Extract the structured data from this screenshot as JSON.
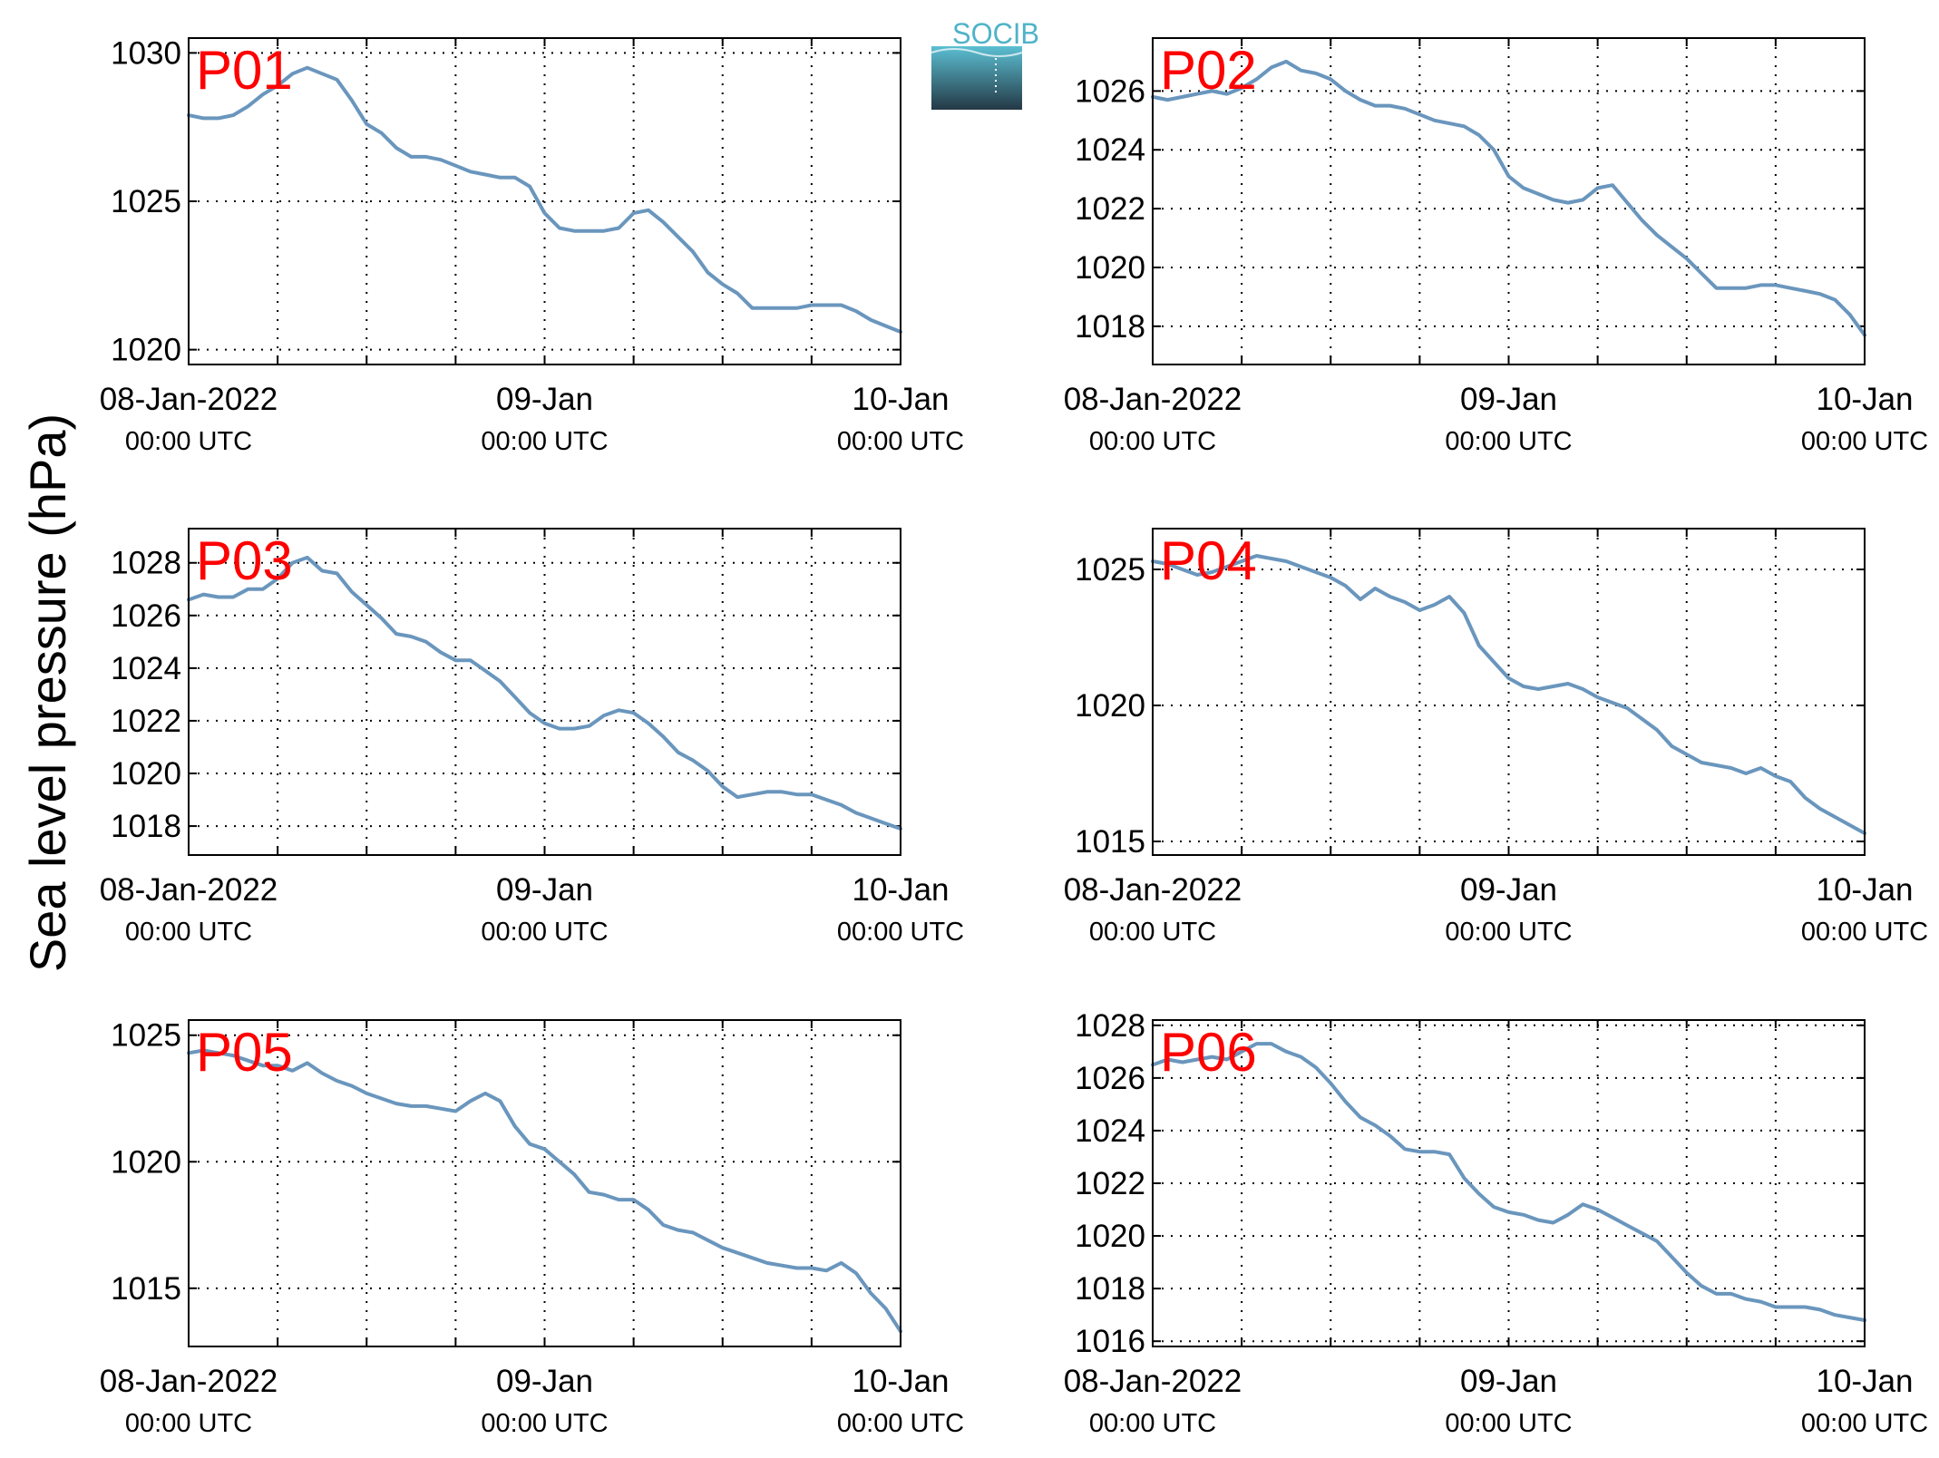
{
  "figure": {
    "ylabel": "Sea level pressure (hPa)",
    "logo_text": "SOCIB",
    "colors": {
      "line": "#6a96bd",
      "label": "#ff0000",
      "logo_top": "#5bbfd2",
      "logo_bottom": "#243845"
    }
  },
  "chart_data": [
    {
      "type": "line",
      "title": "P01",
      "grid": true,
      "x_tick_dates": [
        "08-Jan-2022",
        "09-Jan",
        "10-Jan"
      ],
      "x_tick_times": [
        "00:00 UTC",
        "00:00 UTC",
        "00:00 UTC"
      ],
      "xlim": [
        0,
        48
      ],
      "ylim": [
        1019.5,
        1030.5
      ],
      "yticks": [
        1020,
        1025,
        1030
      ],
      "series": [
        {
          "x": [
            0,
            1,
            2,
            3,
            4,
            5,
            6,
            7,
            8,
            9,
            10,
            11,
            12,
            13,
            14,
            15,
            16,
            17,
            18,
            19,
            20,
            21,
            22,
            23,
            24,
            25,
            26,
            27,
            28,
            29,
            30,
            31,
            32,
            33,
            34,
            35,
            36,
            37,
            38,
            39,
            40,
            41,
            42,
            43,
            44,
            45,
            46,
            47,
            48
          ],
          "y": [
            1027.9,
            1027.8,
            1027.8,
            1027.9,
            1028.2,
            1028.6,
            1028.9,
            1029.3,
            1029.5,
            1029.3,
            1029.1,
            1028.4,
            1027.6,
            1027.3,
            1026.8,
            1026.5,
            1026.5,
            1026.4,
            1026.2,
            1026.0,
            1025.9,
            1025.8,
            1025.8,
            1025.5,
            1024.6,
            1024.1,
            1024.0,
            1024.0,
            1024.0,
            1024.1,
            1024.6,
            1024.7,
            1024.3,
            1023.8,
            1023.3,
            1022.6,
            1022.2,
            1021.9,
            1021.4,
            1021.4,
            1021.4,
            1021.4,
            1021.5,
            1021.5,
            1021.5,
            1021.3,
            1021.0,
            1020.8,
            1020.6
          ]
        }
      ]
    },
    {
      "type": "line",
      "title": "P02",
      "grid": true,
      "x_tick_dates": [
        "08-Jan-2022",
        "09-Jan",
        "10-Jan"
      ],
      "x_tick_times": [
        "00:00 UTC",
        "00:00 UTC",
        "00:00 UTC"
      ],
      "xlim": [
        0,
        48
      ],
      "ylim": [
        1016.7,
        1027.8
      ],
      "yticks": [
        1018,
        1020,
        1022,
        1024,
        1026
      ],
      "series": [
        {
          "x": [
            0,
            1,
            2,
            3,
            4,
            5,
            6,
            7,
            8,
            9,
            10,
            11,
            12,
            13,
            14,
            15,
            16,
            17,
            18,
            19,
            20,
            21,
            22,
            23,
            24,
            25,
            26,
            27,
            28,
            29,
            30,
            31,
            32,
            33,
            34,
            35,
            36,
            37,
            38,
            39,
            40,
            41,
            42,
            43,
            44,
            45,
            46,
            47,
            48
          ],
          "y": [
            1025.8,
            1025.7,
            1025.8,
            1025.9,
            1026.0,
            1025.9,
            1026.1,
            1026.4,
            1026.8,
            1027.0,
            1026.7,
            1026.6,
            1026.4,
            1026.0,
            1025.7,
            1025.5,
            1025.5,
            1025.4,
            1025.2,
            1025.0,
            1024.9,
            1024.8,
            1024.5,
            1024.0,
            1023.1,
            1022.7,
            1022.5,
            1022.3,
            1022.2,
            1022.3,
            1022.7,
            1022.8,
            1022.2,
            1021.6,
            1021.1,
            1020.7,
            1020.3,
            1019.8,
            1019.3,
            1019.3,
            1019.3,
            1019.4,
            1019.4,
            1019.3,
            1019.2,
            1019.1,
            1018.9,
            1018.4,
            1017.7
          ]
        }
      ]
    },
    {
      "type": "line",
      "title": "P03",
      "grid": true,
      "x_tick_dates": [
        "08-Jan-2022",
        "09-Jan",
        "10-Jan"
      ],
      "x_tick_times": [
        "00:00 UTC",
        "00:00 UTC",
        "00:00 UTC"
      ],
      "xlim": [
        0,
        48
      ],
      "ylim": [
        1016.9,
        1029.3
      ],
      "yticks": [
        1018,
        1020,
        1022,
        1024,
        1026,
        1028
      ],
      "series": [
        {
          "x": [
            0,
            1,
            2,
            3,
            4,
            5,
            6,
            7,
            8,
            9,
            10,
            11,
            12,
            13,
            14,
            15,
            16,
            17,
            18,
            19,
            20,
            21,
            22,
            23,
            24,
            25,
            26,
            27,
            28,
            29,
            30,
            31,
            32,
            33,
            34,
            35,
            36,
            37,
            38,
            39,
            40,
            41,
            42,
            43,
            44,
            45,
            46,
            47,
            48
          ],
          "y": [
            1026.6,
            1026.8,
            1026.7,
            1026.7,
            1027.0,
            1027.0,
            1027.4,
            1028.0,
            1028.2,
            1027.7,
            1027.6,
            1026.9,
            1026.4,
            1025.9,
            1025.3,
            1025.2,
            1025.0,
            1024.6,
            1024.3,
            1024.3,
            1023.9,
            1023.5,
            1022.9,
            1022.3,
            1021.9,
            1021.7,
            1021.7,
            1021.8,
            1022.2,
            1022.4,
            1022.3,
            1021.9,
            1021.4,
            1020.8,
            1020.5,
            1020.1,
            1019.5,
            1019.1,
            1019.2,
            1019.3,
            1019.3,
            1019.2,
            1019.2,
            1019.0,
            1018.8,
            1018.5,
            1018.3,
            1018.1,
            1017.9
          ]
        }
      ]
    },
    {
      "type": "line",
      "title": "P04",
      "grid": true,
      "x_tick_dates": [
        "08-Jan-2022",
        "09-Jan",
        "10-Jan"
      ],
      "x_tick_times": [
        "00:00 UTC",
        "00:00 UTC",
        "00:00 UTC"
      ],
      "xlim": [
        0,
        48
      ],
      "ylim": [
        1014.5,
        1026.5
      ],
      "yticks": [
        1015,
        1020,
        1025
      ],
      "series": [
        {
          "x": [
            0,
            1,
            2,
            3,
            4,
            5,
            6,
            7,
            8,
            9,
            10,
            11,
            12,
            13,
            14,
            15,
            16,
            17,
            18,
            19,
            20,
            21,
            22,
            23,
            24,
            25,
            26,
            27,
            28,
            29,
            30,
            31,
            32,
            33,
            34,
            35,
            36,
            37,
            38,
            39,
            40,
            41,
            42,
            43,
            44,
            45,
            46,
            47,
            48
          ],
          "y": [
            1025.3,
            1025.2,
            1025.0,
            1024.8,
            1024.9,
            1025.1,
            1025.3,
            1025.5,
            1025.4,
            1025.3,
            1025.1,
            1024.9,
            1024.7,
            1024.4,
            1023.9,
            1024.3,
            1024.0,
            1023.8,
            1023.5,
            1023.7,
            1024.0,
            1023.4,
            1022.2,
            1021.6,
            1021.0,
            1020.7,
            1020.6,
            1020.7,
            1020.8,
            1020.6,
            1020.3,
            1020.1,
            1019.9,
            1019.5,
            1019.1,
            1018.5,
            1018.2,
            1017.9,
            1017.8,
            1017.7,
            1017.5,
            1017.7,
            1017.4,
            1017.2,
            1016.6,
            1016.2,
            1015.9,
            1015.6,
            1015.3
          ]
        }
      ]
    },
    {
      "type": "line",
      "title": "P05",
      "grid": true,
      "x_tick_dates": [
        "08-Jan-2022",
        "09-Jan",
        "10-Jan"
      ],
      "x_tick_times": [
        "00:00 UTC",
        "00:00 UTC",
        "00:00 UTC"
      ],
      "xlim": [
        0,
        48
      ],
      "ylim": [
        1012.7,
        1025.6
      ],
      "yticks": [
        1015,
        1020,
        1025
      ],
      "series": [
        {
          "x": [
            0,
            1,
            2,
            3,
            4,
            5,
            6,
            7,
            8,
            9,
            10,
            11,
            12,
            13,
            14,
            15,
            16,
            17,
            18,
            19,
            20,
            21,
            22,
            23,
            24,
            25,
            26,
            27,
            28,
            29,
            30,
            31,
            32,
            33,
            34,
            35,
            36,
            37,
            38,
            39,
            40,
            41,
            42,
            43,
            44,
            45,
            46,
            47,
            48
          ],
          "y": [
            1024.3,
            1024.4,
            1024.3,
            1024.2,
            1024.0,
            1023.8,
            1023.8,
            1023.6,
            1023.9,
            1023.5,
            1023.2,
            1023.0,
            1022.7,
            1022.5,
            1022.3,
            1022.2,
            1022.2,
            1022.1,
            1022.0,
            1022.4,
            1022.7,
            1022.4,
            1021.4,
            1020.7,
            1020.5,
            1020.0,
            1019.5,
            1018.8,
            1018.7,
            1018.5,
            1018.5,
            1018.1,
            1017.5,
            1017.3,
            1017.2,
            1016.9,
            1016.6,
            1016.4,
            1016.2,
            1016.0,
            1015.9,
            1015.8,
            1015.8,
            1015.7,
            1016.0,
            1015.6,
            1014.8,
            1014.2,
            1013.3
          ]
        }
      ]
    },
    {
      "type": "line",
      "title": "P06",
      "grid": true,
      "x_tick_dates": [
        "08-Jan-2022",
        "09-Jan",
        "10-Jan"
      ],
      "x_tick_times": [
        "00:00 UTC",
        "00:00 UTC",
        "00:00 UTC"
      ],
      "xlim": [
        0,
        48
      ],
      "ylim": [
        1015.8,
        1028.2
      ],
      "yticks": [
        1016,
        1018,
        1020,
        1022,
        1024,
        1026,
        1028
      ],
      "series": [
        {
          "x": [
            0,
            1,
            2,
            3,
            4,
            5,
            6,
            7,
            8,
            9,
            10,
            11,
            12,
            13,
            14,
            15,
            16,
            17,
            18,
            19,
            20,
            21,
            22,
            23,
            24,
            25,
            26,
            27,
            28,
            29,
            30,
            31,
            32,
            33,
            34,
            35,
            36,
            37,
            38,
            39,
            40,
            41,
            42,
            43,
            44,
            45,
            46,
            47,
            48
          ],
          "y": [
            1026.5,
            1026.7,
            1026.6,
            1026.7,
            1026.8,
            1026.7,
            1027.0,
            1027.3,
            1027.3,
            1027.0,
            1026.8,
            1026.4,
            1025.8,
            1025.1,
            1024.5,
            1024.2,
            1023.8,
            1023.3,
            1023.2,
            1023.2,
            1023.1,
            1022.2,
            1021.6,
            1021.1,
            1020.9,
            1020.8,
            1020.6,
            1020.5,
            1020.8,
            1021.2,
            1021.0,
            1020.7,
            1020.4,
            1020.1,
            1019.8,
            1019.2,
            1018.6,
            1018.1,
            1017.8,
            1017.8,
            1017.6,
            1017.5,
            1017.3,
            1017.3,
            1017.3,
            1017.2,
            1017.0,
            1016.9,
            1016.8
          ]
        }
      ]
    }
  ]
}
